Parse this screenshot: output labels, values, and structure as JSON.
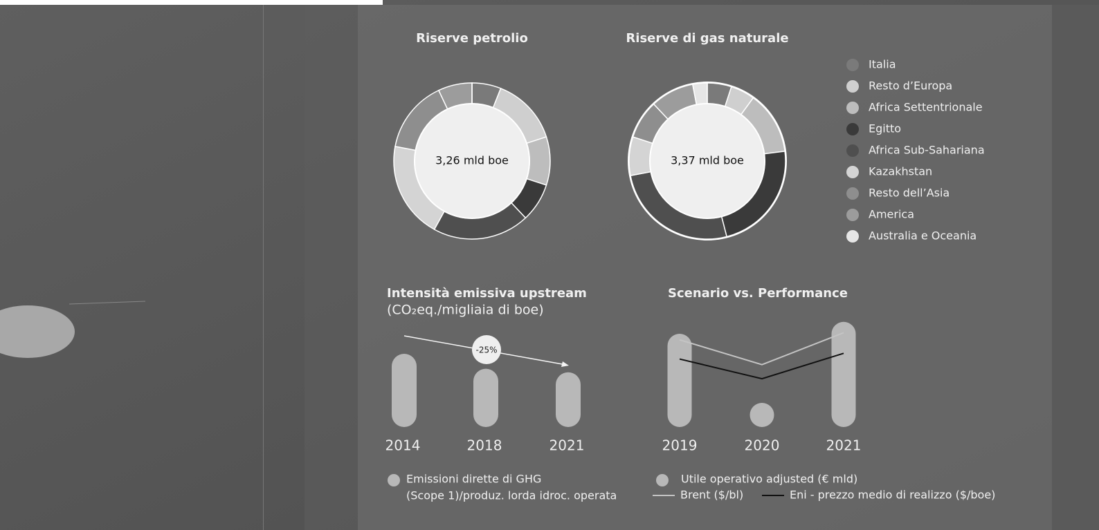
{
  "legend": {
    "categories": [
      "Italia",
      "Resto d’Europa",
      "Africa Settentrionale",
      "Egitto",
      "Africa Sub-Sahariana",
      "Kazakhstan",
      "Resto dell’Asia",
      "America",
      "Australia e Oceania"
    ],
    "colors": [
      "#7a7a7a",
      "#cfcfcf",
      "#bdbdbd",
      "#3a3a3a",
      "#4f4f4f",
      "#d4d4d4",
      "#8e8e8e",
      "#9c9c9c",
      "#e6e6e6"
    ]
  },
  "chart_data": [
    {
      "type": "donut",
      "title": "Riserve petrolio",
      "center_label": "3,26 mld boe",
      "values": [
        6,
        14,
        10,
        8,
        20,
        20,
        15,
        7,
        0
      ]
    },
    {
      "type": "donut",
      "title": "Riserve di gas naturale",
      "center_label": "3,37 mld boe",
      "values": [
        5,
        5,
        13,
        23,
        26,
        8,
        8,
        9,
        3
      ]
    },
    {
      "type": "bar",
      "title": "Intensità emissiva upstream",
      "subtitle": "(CO₂eq./migliaia di boe)",
      "annotation": "-25%",
      "categories": [
        "2014",
        "2018",
        "2021"
      ],
      "series": [
        {
          "name": [
            "Emissioni dirette di GHG",
            "(Scope 1)/produz. lorda idroc. operata"
          ],
          "color": "#b8b8b8",
          "values": [
            27,
            21.5,
            20.2
          ]
        }
      ]
    },
    {
      "type": "bar-line",
      "title": "Scenario vs. Performance",
      "categories": [
        "2019",
        "2020",
        "2021"
      ],
      "series": [
        {
          "name": "Utile operativo adjusted (€ mld)",
          "color": "#b8b8b8",
          "kind": "bar",
          "values": [
            8.6,
            1.9,
            9.7
          ]
        },
        {
          "name": "Brent ($/bl)",
          "color": "#c4c4c4",
          "kind": "line",
          "values": [
            64.3,
            41.7,
            70.7
          ]
        },
        {
          "name": "Eni - prezzo medio di realizzo ($/boe)",
          "color": "#111111",
          "kind": "line",
          "values": [
            46.8,
            28.9,
            52
          ]
        }
      ]
    }
  ]
}
